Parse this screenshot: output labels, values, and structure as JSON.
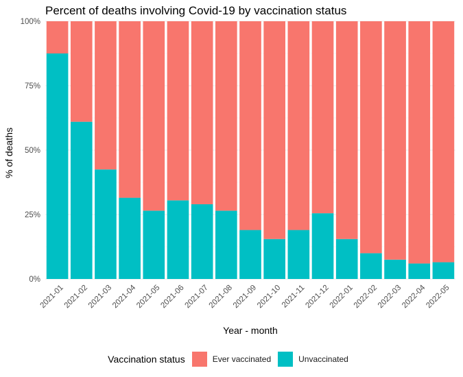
{
  "chart_data": {
    "type": "bar",
    "stacked": true,
    "title": "Percent of deaths involving Covid-19 by vaccination status",
    "xlabel": "Year - month",
    "ylabel": "% of deaths",
    "ylim": [
      0,
      100
    ],
    "y_ticks": [
      0,
      25,
      50,
      75,
      100
    ],
    "y_tick_labels": [
      "0%",
      "25%",
      "50%",
      "75%",
      "100%"
    ],
    "categories": [
      "2021-01",
      "2021-02",
      "2021-03",
      "2021-04",
      "2021-05",
      "2021-06",
      "2021-07",
      "2021-08",
      "2021-09",
      "2021-10",
      "2021-11",
      "2021-12",
      "2022-01",
      "2022-02",
      "2022-03",
      "2022-04",
      "2022-05"
    ],
    "series": [
      {
        "name": "Unvaccinated",
        "color": "#00BFC4",
        "values": [
          87.5,
          61,
          42.5,
          31.5,
          26.5,
          30.5,
          29,
          26.5,
          19,
          15.5,
          19,
          25.5,
          15.5,
          10,
          7.5,
          6,
          6.5
        ]
      },
      {
        "name": "Ever vaccinated",
        "color": "#F8766D",
        "values": [
          12.5,
          39,
          57.5,
          68.5,
          73.5,
          69.5,
          71,
          73.5,
          81,
          84.5,
          81,
          74.5,
          84.5,
          90,
          92.5,
          94,
          93.5
        ]
      }
    ],
    "grid": true,
    "legend_position": "bottom"
  },
  "legend": {
    "title": "Vaccination status",
    "items": [
      {
        "label": "Ever vaccinated",
        "color": "#F8766D"
      },
      {
        "label": "Unvaccinated",
        "color": "#00BFC4"
      }
    ]
  }
}
